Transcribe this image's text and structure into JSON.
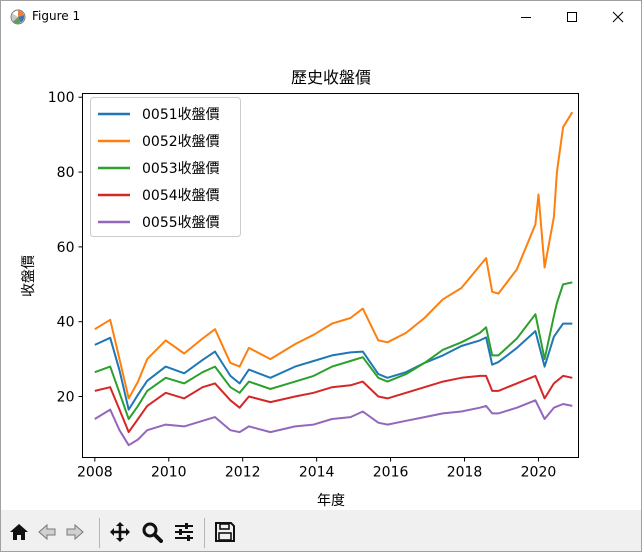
{
  "window": {
    "title": "Figure 1"
  },
  "toolbar": {
    "buttons": [
      {
        "name": "home-button",
        "icon": "home-icon"
      },
      {
        "name": "back-button",
        "icon": "back-arrow-icon"
      },
      {
        "name": "forward-button",
        "icon": "forward-arrow-icon"
      },
      {
        "name": "pan-button",
        "icon": "move-icon"
      },
      {
        "name": "zoom-button",
        "icon": "magnifier-icon"
      },
      {
        "name": "configure-subplots-button",
        "icon": "sliders-icon"
      },
      {
        "name": "save-button",
        "icon": "floppy-disk-icon"
      }
    ]
  },
  "chart_data": {
    "type": "line",
    "title": "歷史收盤價",
    "xlabel": "年度",
    "ylabel": "收盤價",
    "xlim": [
      "2007-09",
      "2021-02"
    ],
    "ylim": [
      3.7,
      101
    ],
    "xticks": [
      "2008",
      "2010",
      "2012",
      "2014",
      "2016",
      "2018",
      "2020"
    ],
    "yticks": [
      20,
      40,
      60,
      80,
      100
    ],
    "grid": false,
    "legend_position": "top-left",
    "series": [
      {
        "name": "0051收盤價",
        "color": "#1f77b4",
        "points": [
          [
            "2008-01",
            33.8
          ],
          [
            "2008-06",
            35.7
          ],
          [
            "2008-09",
            27.0
          ],
          [
            "2008-12",
            16.5
          ],
          [
            "2009-03",
            20.5
          ],
          [
            "2009-06",
            24.2
          ],
          [
            "2009-12",
            28.0
          ],
          [
            "2010-06",
            26.2
          ],
          [
            "2010-12",
            29.8
          ],
          [
            "2011-04",
            32.0
          ],
          [
            "2011-09",
            25.5
          ],
          [
            "2011-12",
            23.5
          ],
          [
            "2012-03",
            27.2
          ],
          [
            "2012-10",
            25.0
          ],
          [
            "2013-06",
            28.0
          ],
          [
            "2013-12",
            29.5
          ],
          [
            "2014-06",
            31.0
          ],
          [
            "2014-12",
            31.8
          ],
          [
            "2015-04",
            32.0
          ],
          [
            "2015-09",
            26.0
          ],
          [
            "2015-12",
            25.0
          ],
          [
            "2016-06",
            26.5
          ],
          [
            "2016-12",
            29.0
          ],
          [
            "2017-06",
            31.0
          ],
          [
            "2017-12",
            33.5
          ],
          [
            "2018-06",
            35.0
          ],
          [
            "2018-08",
            35.8
          ],
          [
            "2018-10",
            28.5
          ],
          [
            "2018-12",
            29.2
          ],
          [
            "2019-06",
            33.0
          ],
          [
            "2019-12",
            37.5
          ],
          [
            "2020-03",
            28.0
          ],
          [
            "2020-06",
            36.0
          ],
          [
            "2020-09",
            39.5
          ],
          [
            "2020-12",
            39.5
          ]
        ]
      },
      {
        "name": "0052收盤價",
        "color": "#ff7f0e",
        "points": [
          [
            "2008-01",
            38.0
          ],
          [
            "2008-06",
            40.5
          ],
          [
            "2008-09",
            30.0
          ],
          [
            "2008-12",
            19.5
          ],
          [
            "2009-03",
            24.0
          ],
          [
            "2009-06",
            30.0
          ],
          [
            "2009-12",
            35.0
          ],
          [
            "2010-06",
            31.5
          ],
          [
            "2010-12",
            35.5
          ],
          [
            "2011-04",
            38.0
          ],
          [
            "2011-09",
            29.0
          ],
          [
            "2011-12",
            28.0
          ],
          [
            "2012-03",
            33.0
          ],
          [
            "2012-10",
            30.0
          ],
          [
            "2013-06",
            34.0
          ],
          [
            "2013-12",
            36.5
          ],
          [
            "2014-06",
            39.5
          ],
          [
            "2014-12",
            41.0
          ],
          [
            "2015-04",
            43.5
          ],
          [
            "2015-09",
            35.0
          ],
          [
            "2015-12",
            34.5
          ],
          [
            "2016-06",
            37.0
          ],
          [
            "2016-12",
            41.0
          ],
          [
            "2017-06",
            46.0
          ],
          [
            "2017-12",
            49.0
          ],
          [
            "2018-06",
            55.0
          ],
          [
            "2018-08",
            57.0
          ],
          [
            "2018-10",
            48.0
          ],
          [
            "2018-12",
            47.5
          ],
          [
            "2019-06",
            54.0
          ],
          [
            "2019-12",
            66.0
          ],
          [
            "2020-01",
            74.0
          ],
          [
            "2020-03",
            54.5
          ],
          [
            "2020-06",
            68.0
          ],
          [
            "2020-07",
            80.0
          ],
          [
            "2020-09",
            92.0
          ],
          [
            "2020-12",
            96.0
          ]
        ]
      },
      {
        "name": "0053收盤價",
        "color": "#2ca02c",
        "points": [
          [
            "2008-01",
            26.5
          ],
          [
            "2008-06",
            28.0
          ],
          [
            "2008-09",
            21.0
          ],
          [
            "2008-12",
            14.0
          ],
          [
            "2009-03",
            17.5
          ],
          [
            "2009-06",
            21.5
          ],
          [
            "2009-12",
            25.0
          ],
          [
            "2010-06",
            23.5
          ],
          [
            "2010-12",
            26.5
          ],
          [
            "2011-04",
            28.0
          ],
          [
            "2011-09",
            22.5
          ],
          [
            "2011-12",
            21.0
          ],
          [
            "2012-03",
            24.0
          ],
          [
            "2012-10",
            22.0
          ],
          [
            "2013-06",
            24.0
          ],
          [
            "2013-12",
            25.5
          ],
          [
            "2014-06",
            28.0
          ],
          [
            "2014-12",
            29.5
          ],
          [
            "2015-04",
            30.5
          ],
          [
            "2015-09",
            25.0
          ],
          [
            "2015-12",
            24.0
          ],
          [
            "2016-06",
            26.0
          ],
          [
            "2016-12",
            29.0
          ],
          [
            "2017-06",
            32.5
          ],
          [
            "2017-12",
            34.5
          ],
          [
            "2018-06",
            37.0
          ],
          [
            "2018-08",
            38.5
          ],
          [
            "2018-10",
            31.0
          ],
          [
            "2018-12",
            31.0
          ],
          [
            "2019-06",
            35.5
          ],
          [
            "2019-12",
            42.0
          ],
          [
            "2020-03",
            30.0
          ],
          [
            "2020-06",
            41.5
          ],
          [
            "2020-07",
            45.0
          ],
          [
            "2020-09",
            50.0
          ],
          [
            "2020-12",
            50.5
          ]
        ]
      },
      {
        "name": "0054收盤價",
        "color": "#d62728",
        "points": [
          [
            "2008-01",
            21.5
          ],
          [
            "2008-06",
            22.5
          ],
          [
            "2008-09",
            16.5
          ],
          [
            "2008-12",
            10.5
          ],
          [
            "2009-03",
            14.0
          ],
          [
            "2009-06",
            17.5
          ],
          [
            "2009-12",
            21.0
          ],
          [
            "2010-06",
            19.5
          ],
          [
            "2010-12",
            22.5
          ],
          [
            "2011-04",
            23.5
          ],
          [
            "2011-09",
            19.0
          ],
          [
            "2011-12",
            17.0
          ],
          [
            "2012-03",
            20.0
          ],
          [
            "2012-10",
            18.5
          ],
          [
            "2013-06",
            20.0
          ],
          [
            "2013-12",
            21.0
          ],
          [
            "2014-06",
            22.5
          ],
          [
            "2014-12",
            23.0
          ],
          [
            "2015-04",
            24.0
          ],
          [
            "2015-09",
            20.0
          ],
          [
            "2015-12",
            19.5
          ],
          [
            "2016-06",
            21.0
          ],
          [
            "2016-12",
            22.5
          ],
          [
            "2017-06",
            24.0
          ],
          [
            "2017-12",
            25.0
          ],
          [
            "2018-06",
            25.5
          ],
          [
            "2018-08",
            25.5
          ],
          [
            "2018-10",
            21.5
          ],
          [
            "2018-12",
            21.5
          ],
          [
            "2019-06",
            23.5
          ],
          [
            "2019-12",
            25.5
          ],
          [
            "2020-03",
            19.5
          ],
          [
            "2020-06",
            23.5
          ],
          [
            "2020-09",
            25.5
          ],
          [
            "2020-12",
            25.0
          ]
        ]
      },
      {
        "name": "0055收盤價",
        "color": "#9467bd",
        "points": [
          [
            "2008-01",
            14.0
          ],
          [
            "2008-06",
            16.5
          ],
          [
            "2008-09",
            11.0
          ],
          [
            "2008-12",
            7.0
          ],
          [
            "2009-03",
            8.5
          ],
          [
            "2009-06",
            11.0
          ],
          [
            "2009-12",
            12.5
          ],
          [
            "2010-06",
            12.0
          ],
          [
            "2010-12",
            13.5
          ],
          [
            "2011-04",
            14.5
          ],
          [
            "2011-09",
            11.0
          ],
          [
            "2011-12",
            10.5
          ],
          [
            "2012-03",
            12.0
          ],
          [
            "2012-10",
            10.5
          ],
          [
            "2013-06",
            12.0
          ],
          [
            "2013-12",
            12.5
          ],
          [
            "2014-06",
            14.0
          ],
          [
            "2014-12",
            14.5
          ],
          [
            "2015-04",
            16.0
          ],
          [
            "2015-09",
            13.0
          ],
          [
            "2015-12",
            12.5
          ],
          [
            "2016-06",
            13.5
          ],
          [
            "2016-12",
            14.5
          ],
          [
            "2017-06",
            15.5
          ],
          [
            "2017-12",
            16.0
          ],
          [
            "2018-06",
            17.0
          ],
          [
            "2018-08",
            17.5
          ],
          [
            "2018-10",
            15.5
          ],
          [
            "2018-12",
            15.5
          ],
          [
            "2019-06",
            17.0
          ],
          [
            "2019-12",
            19.0
          ],
          [
            "2020-03",
            14.0
          ],
          [
            "2020-06",
            17.0
          ],
          [
            "2020-09",
            18.0
          ],
          [
            "2020-12",
            17.5
          ]
        ]
      }
    ]
  }
}
